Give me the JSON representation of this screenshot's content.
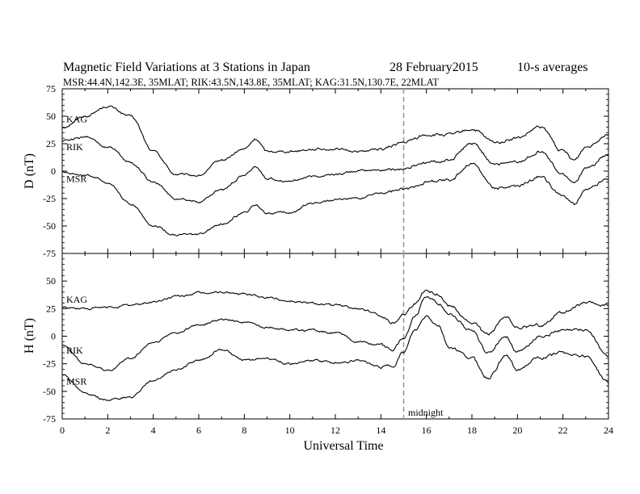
{
  "header": {
    "title": "Magnetic Field Variations at 3 Stations in Japan",
    "date": "28  February2015",
    "averaging": "10-s averages",
    "stations": "MSR:44.4N,142.3E, 35MLAT;   RIK:43.5N,143.8E, 35MLAT;   KAG:31.5N,130.7E, 22MLAT"
  },
  "chart_data": [
    {
      "type": "line",
      "panel": "D",
      "ylabel": "D (nT)",
      "ylim": [
        -75,
        75
      ],
      "yticks": [
        75,
        50,
        25,
        0,
        -25,
        -50,
        -75
      ],
      "xlim": [
        0,
        24
      ],
      "x": [
        0,
        1,
        2,
        3,
        4,
        5,
        6,
        7,
        8,
        8.5,
        9,
        10,
        11,
        12,
        13,
        14,
        15,
        16,
        17,
        18,
        19,
        20,
        21,
        22,
        22.5,
        23,
        24
      ],
      "series": [
        {
          "name": "KAG",
          "values": [
            40,
            50,
            59,
            50,
            18,
            -3,
            -4,
            10,
            20,
            29,
            18,
            18,
            20,
            20,
            18,
            20,
            26,
            33,
            33,
            38,
            26,
            30,
            40,
            18,
            10,
            22,
            34
          ]
        },
        {
          "name": "RIK",
          "values": [
            28,
            31,
            22,
            8,
            -10,
            -25,
            -28,
            -17,
            -4,
            4,
            -7,
            -9,
            -5,
            -3,
            0,
            1,
            2,
            8,
            10,
            25,
            7,
            8,
            18,
            -3,
            -10,
            2,
            14
          ]
        },
        {
          "name": "MSR",
          "values": [
            -1,
            -3,
            -10,
            -30,
            -50,
            -58,
            -58,
            -48,
            -38,
            -31,
            -38,
            -38,
            -29,
            -26,
            -25,
            -20,
            -17,
            -10,
            -8,
            7,
            -15,
            -14,
            -5,
            -23,
            -30,
            -17,
            -7
          ]
        }
      ],
      "annotations": {
        "vline_x": 15
      }
    },
    {
      "type": "line",
      "panel": "H",
      "ylabel": "H (nT)",
      "ylim": [
        -75,
        75
      ],
      "yticks": [
        50,
        25,
        0,
        -25,
        -50,
        -75
      ],
      "xlim": [
        0,
        24
      ],
      "xlabel": "Universal Time",
      "xticks": [
        0,
        2,
        4,
        6,
        8,
        10,
        12,
        14,
        15,
        16,
        18,
        20,
        22,
        24
      ],
      "xticklabels": [
        "0",
        "2",
        "4",
        "6",
        "8",
        "10",
        "12",
        "14",
        "",
        "16",
        "18",
        "20",
        "22",
        "24"
      ],
      "x": [
        0,
        1,
        2,
        3,
        4,
        5,
        6,
        7,
        8,
        9,
        10,
        11,
        12,
        13,
        14,
        14.5,
        15,
        15.5,
        16,
        16.5,
        17,
        18,
        18.7,
        19.5,
        20,
        21,
        22,
        23,
        24
      ],
      "series": [
        {
          "name": "KAG",
          "values": [
            26,
            25,
            26,
            28,
            31,
            36,
            39,
            40,
            38,
            35,
            32,
            30,
            28,
            25,
            19,
            12,
            20,
            30,
            42,
            38,
            28,
            12,
            2,
            17,
            8,
            10,
            22,
            30,
            28
          ]
        },
        {
          "name": "RIK",
          "values": [
            -7,
            -25,
            -31,
            -20,
            -6,
            3,
            10,
            15,
            13,
            8,
            6,
            5,
            3,
            -5,
            -8,
            -12,
            -2,
            18,
            37,
            30,
            20,
            5,
            -15,
            0,
            -15,
            0,
            5,
            6,
            -18
          ]
        },
        {
          "name": "MSR",
          "values": [
            -35,
            -52,
            -58,
            -55,
            -40,
            -30,
            -22,
            -12,
            -22,
            -20,
            -25,
            -22,
            -24,
            -22,
            -28,
            -27,
            -15,
            5,
            18,
            10,
            -10,
            -20,
            -38,
            -18,
            -30,
            -20,
            -15,
            -18,
            -42
          ]
        }
      ],
      "annotations": {
        "vline_x": 15,
        "vline_label": "midnight"
      }
    }
  ]
}
